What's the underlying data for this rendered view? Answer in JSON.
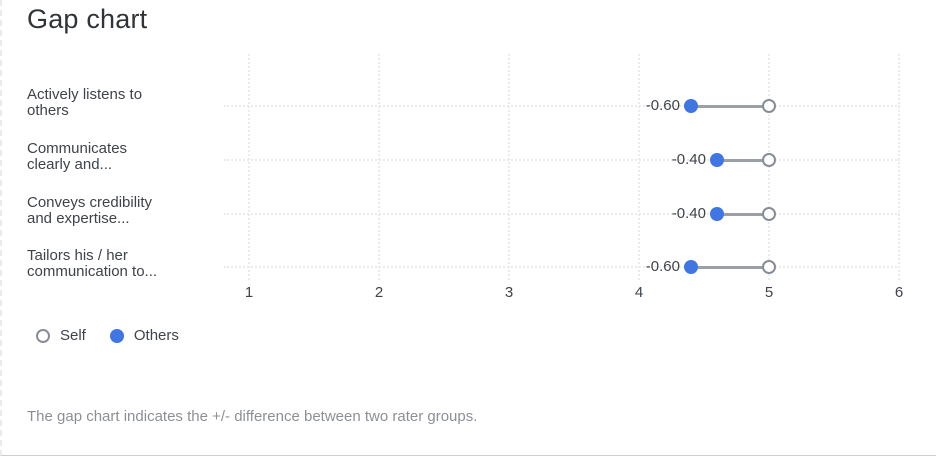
{
  "header": {
    "title": "Gap chart"
  },
  "chart_data": {
    "type": "gap-dot-plot",
    "categories": [
      {
        "lines": [
          "Actively listens to",
          "others"
        ]
      },
      {
        "lines": [
          "Communicates",
          "clearly and..."
        ]
      },
      {
        "lines": [
          "Conveys credibility",
          "and expertise..."
        ]
      },
      {
        "lines": [
          "Tailors his / her",
          "communication to..."
        ]
      }
    ],
    "series": [
      {
        "name": "Self",
        "marker": "open-circle",
        "values": [
          5.0,
          5.0,
          5.0,
          5.0
        ]
      },
      {
        "name": "Others",
        "marker": "filled-circle",
        "values": [
          4.4,
          4.6,
          4.6,
          4.4
        ]
      }
    ],
    "gap_labels": [
      "-0.60",
      "-0.40",
      "-0.40",
      "-0.60"
    ],
    "x_ticks": [
      "1",
      "2",
      "3",
      "4",
      "5",
      "6"
    ],
    "xlim": [
      1,
      6
    ],
    "grid": "dotted",
    "legend_position": "bottom-left",
    "colors": {
      "others_fill": "#4175E2",
      "self_stroke": "#878D96",
      "connector": "#9AA0A6",
      "grid": "#EBEBEB",
      "label_text": "#3F434A",
      "muted_text": "#8C9095"
    }
  },
  "legend": {
    "items": [
      {
        "label": "Self",
        "marker": "open-circle"
      },
      {
        "label": "Others",
        "marker": "filled-circle"
      }
    ]
  },
  "footer": {
    "note": "The gap chart indicates the +/- difference between two rater groups."
  }
}
